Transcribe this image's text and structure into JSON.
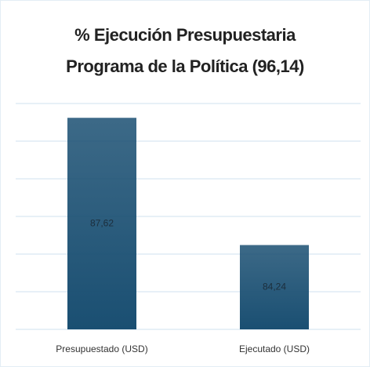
{
  "chart_data": {
    "type": "bar",
    "title": [
      "% Ejecución Presupuestaria",
      "Programa de la Política (96,14)"
    ],
    "categories": [
      "Presupuestado (USD)",
      "Ejecutado (USD)"
    ],
    "values": [
      87.62,
      84.24
    ],
    "value_labels": [
      "87,62",
      "84,24"
    ],
    "color": "#1a4f72",
    "ylim": [
      82,
      88
    ],
    "yticks": [
      82,
      83,
      84,
      85,
      86,
      87,
      88
    ],
    "grid": true
  }
}
